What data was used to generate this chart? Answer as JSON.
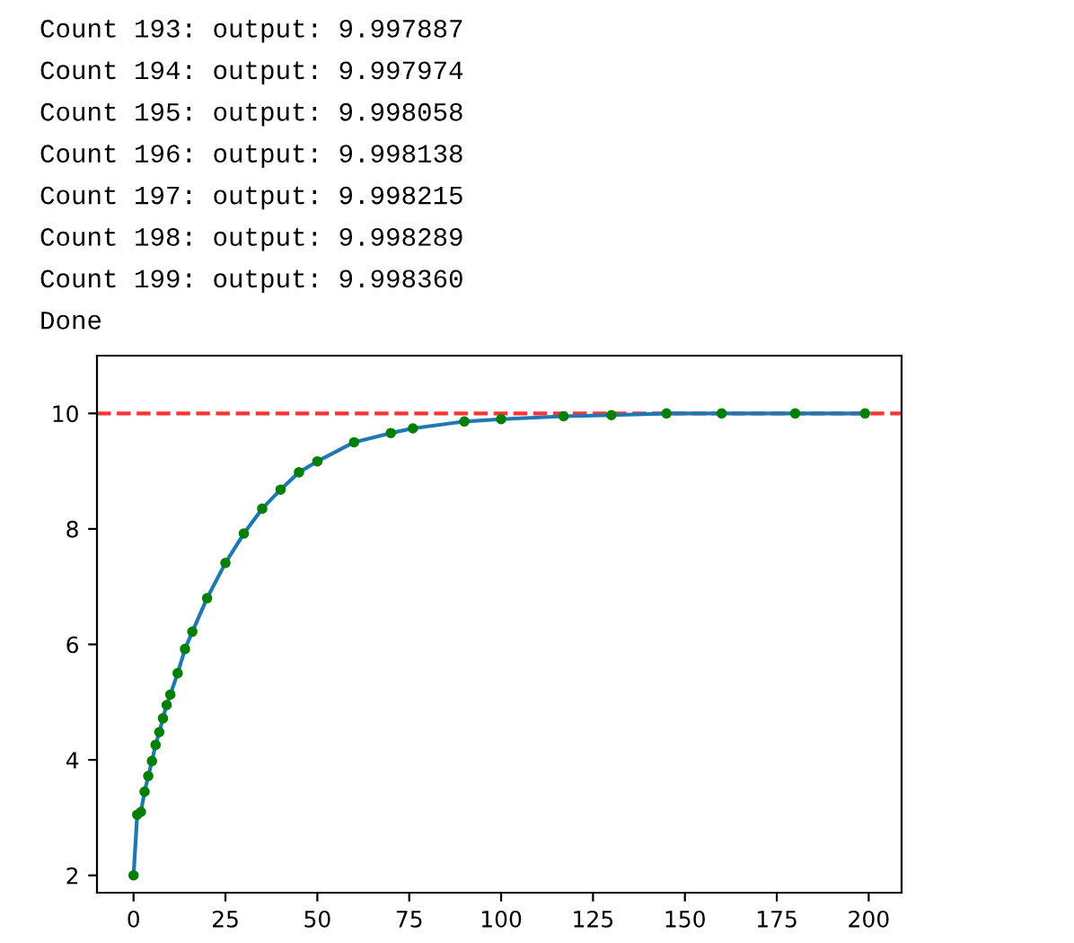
{
  "chart_data": {
    "type": "line",
    "annotations": [
      "Count 193: output: 9.997887",
      "Count 194: output: 9.997974",
      "Count 195: output: 9.998058",
      "Count 196: output: 9.998138",
      "Count 197: output: 9.998215",
      "Count 198: output: 9.998289",
      "Count 199: output: 9.998360",
      "Done"
    ],
    "x": [
      0,
      1,
      2,
      3,
      4,
      5,
      6,
      7,
      8,
      9,
      10,
      12,
      14,
      16,
      20,
      25,
      30,
      35,
      40,
      45,
      50,
      60,
      70,
      76,
      90,
      100,
      117,
      130,
      145,
      160,
      180,
      199
    ],
    "series": [
      {
        "color": "#1f77b4",
        "marker": "none",
        "values": [
          2.0,
          3.05,
          3.1,
          3.45,
          3.72,
          3.98,
          4.26,
          4.48,
          4.72,
          4.95,
          5.13,
          5.5,
          5.92,
          6.22,
          6.8,
          7.41,
          7.92,
          8.35,
          8.68,
          8.98,
          9.17,
          9.5,
          9.66,
          9.74,
          9.86,
          9.9,
          9.95,
          9.97,
          10.0,
          10.0,
          10.0,
          10.0
        ]
      },
      {
        "type": "scatter",
        "color": "#008000",
        "marker": "circle",
        "values": [
          2.0,
          3.05,
          3.1,
          3.45,
          3.72,
          3.98,
          4.26,
          4.48,
          4.72,
          4.95,
          5.13,
          5.5,
          5.92,
          6.22,
          6.8,
          7.41,
          7.92,
          8.35,
          8.68,
          8.98,
          9.17,
          9.5,
          9.66,
          9.74,
          9.86,
          9.9,
          9.95,
          9.97,
          10.0,
          10.0,
          10.0,
          10.0
        ]
      }
    ],
    "ref_lines": [
      {
        "axis": "y",
        "value": 10,
        "color": "#ff3333",
        "line_style": "dashed"
      }
    ],
    "xlim": [
      -9.95,
      208.95
    ],
    "ylim": [
      1.7,
      11.0
    ],
    "xticks": [
      0,
      25,
      50,
      75,
      100,
      125,
      150,
      175,
      200
    ],
    "yticks": [
      2,
      4,
      6,
      8,
      10
    ],
    "grid": false,
    "legend": false
  }
}
